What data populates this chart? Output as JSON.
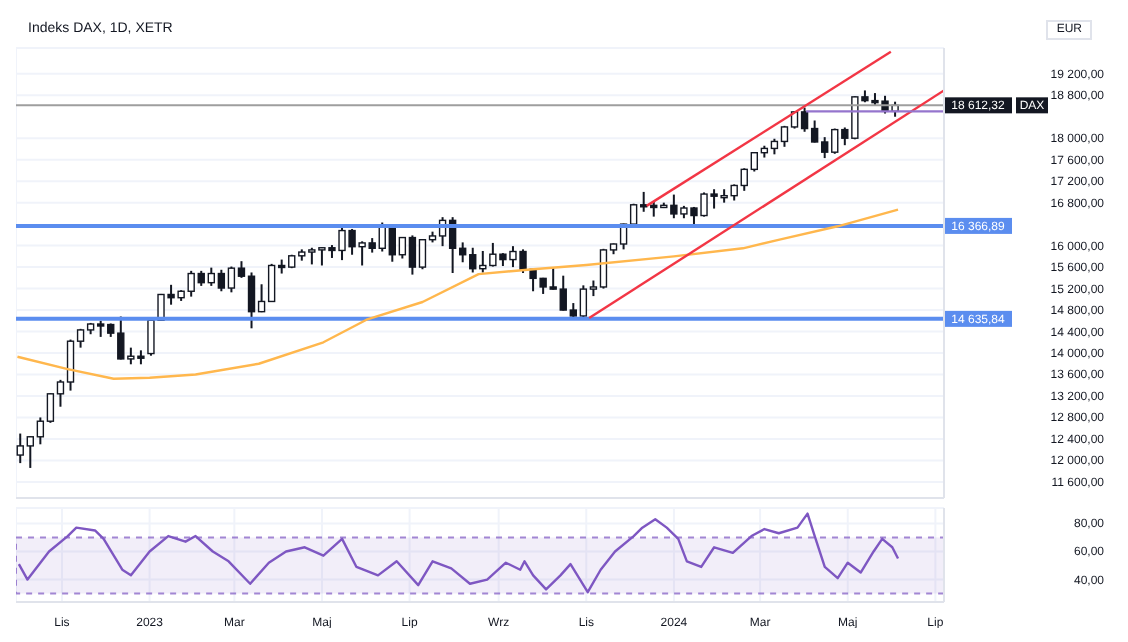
{
  "chart_data": [
    {
      "type": "candlestick",
      "title": "Indeks DAX, 1D, XETR",
      "color": "#131722",
      "grid": true,
      "tick_labels": "y",
      "annotations": [
        "EUR",
        "DAX"
      ],
      "xlim": [
        "2022-09-30",
        "2024-07-07"
      ],
      "xticks": [
        {
          "value": "2022-11-01",
          "label": null
        },
        {
          "value": "2023-01-01",
          "label": null
        },
        {
          "value": "2023-03-01",
          "label": null
        },
        {
          "value": "2023-05-01",
          "label": null
        },
        {
          "value": "2023-07-01",
          "label": null
        },
        {
          "value": "2023-09-01",
          "label": null
        },
        {
          "value": "2023-11-01",
          "label": null
        },
        {
          "value": "2024-01-01",
          "label": null
        },
        {
          "value": "2024-03-01",
          "label": null
        },
        {
          "value": "2024-05-01",
          "label": null
        },
        {
          "value": "2024-07-01",
          "label": null
        }
      ],
      "ylim": [
        11300,
        19680
      ],
      "yticks": [
        {
          "value": 11600,
          "label": "11 600,00"
        },
        {
          "value": 12000,
          "label": "12 000,00"
        },
        {
          "value": 12400,
          "label": "12 400,00"
        },
        {
          "value": 12800,
          "label": "12 800,00"
        },
        {
          "value": 13200,
          "label": "13 200,00"
        },
        {
          "value": 13600,
          "label": "13 600,00"
        },
        {
          "value": 14000,
          "label": "14 000,00"
        },
        {
          "value": 14400,
          "label": "14 400,00"
        },
        {
          "value": 14800,
          "label": "14 800,00"
        },
        {
          "value": 15200,
          "label": "15 200,00"
        },
        {
          "value": 15600,
          "label": "15 600,00"
        },
        {
          "value": 16000,
          "label": "16 000,00"
        },
        {
          "value": 16800,
          "label": "16 800,00"
        },
        {
          "value": 17200,
          "label": "17 200,00"
        },
        {
          "value": 17600,
          "label": "17 600,00"
        },
        {
          "value": 18000,
          "label": "18 000,00"
        },
        {
          "value": 18800,
          "label": "18 800,00"
        },
        {
          "value": 19200,
          "label": "19 200,00"
        }
      ],
      "ref_lines": [
        {
          "axis": "y",
          "value": 18612.32,
          "label": "18 612,32",
          "color": "#9e9e9e"
        },
        {
          "axis": "y",
          "value": 16366.89,
          "label": "16 366,89",
          "color": "#5b8def"
        },
        {
          "axis": "y",
          "value": 14635.84,
          "label": "14 635,84",
          "color": "#5b8def"
        }
      ],
      "x": [
        "2022-10-03",
        "2022-10-10",
        "2022-10-17",
        "2022-10-24",
        "2022-10-31",
        "2022-11-07",
        "2022-11-14",
        "2022-11-21",
        "2022-11-28",
        "2022-12-05",
        "2022-12-12",
        "2022-12-19",
        "2022-12-26",
        "2023-01-02",
        "2023-01-09",
        "2023-01-16",
        "2023-01-23",
        "2023-01-30",
        "2023-02-06",
        "2023-02-13",
        "2023-02-20",
        "2023-02-27",
        "2023-03-06",
        "2023-03-13",
        "2023-03-20",
        "2023-03-27",
        "2023-04-03",
        "2023-04-10",
        "2023-04-17",
        "2023-04-24",
        "2023-05-01",
        "2023-05-08",
        "2023-05-15",
        "2023-05-22",
        "2023-05-29",
        "2023-06-05",
        "2023-06-12",
        "2023-06-19",
        "2023-06-26",
        "2023-07-03",
        "2023-07-10",
        "2023-07-17",
        "2023-07-24",
        "2023-07-31",
        "2023-08-07",
        "2023-08-14",
        "2023-08-21",
        "2023-08-28",
        "2023-09-04",
        "2023-09-11",
        "2023-09-18",
        "2023-09-25",
        "2023-10-02",
        "2023-10-09",
        "2023-10-16",
        "2023-10-23",
        "2023-10-30",
        "2023-11-06",
        "2023-11-13",
        "2023-11-20",
        "2023-11-27",
        "2023-12-04",
        "2023-12-11",
        "2023-12-18",
        "2023-12-25",
        "2024-01-01",
        "2024-01-08",
        "2024-01-15",
        "2024-01-22",
        "2024-01-29",
        "2024-02-05",
        "2024-02-12",
        "2024-02-19",
        "2024-02-26",
        "2024-03-04",
        "2024-03-11",
        "2024-03-18",
        "2024-03-25",
        "2024-04-01",
        "2024-04-08",
        "2024-04-15",
        "2024-04-22",
        "2024-04-29",
        "2024-05-06",
        "2024-05-13",
        "2024-05-20",
        "2024-05-27",
        "2024-06-03"
      ],
      "ohlc": [
        [
          12100,
          12500,
          11950,
          12270
        ],
        [
          12270,
          12450,
          11860,
          12440
        ],
        [
          12440,
          12800,
          12300,
          12730
        ],
        [
          12730,
          13250,
          12700,
          13240
        ],
        [
          13240,
          13500,
          13000,
          13460
        ],
        [
          13460,
          14250,
          13300,
          14220
        ],
        [
          14220,
          14450,
          14100,
          14430
        ],
        [
          14430,
          14560,
          14350,
          14540
        ],
        [
          14540,
          14600,
          14300,
          14530
        ],
        [
          14530,
          14550,
          14300,
          14370
        ],
        [
          14370,
          14680,
          13880,
          13890
        ],
        [
          13890,
          14100,
          13790,
          13940
        ],
        [
          13940,
          14050,
          13790,
          13920
        ],
        [
          13990,
          14650,
          13950,
          14610
        ],
        [
          14610,
          15100,
          14600,
          15090
        ],
        [
          15090,
          15270,
          14900,
          15030
        ],
        [
          15030,
          15170,
          14970,
          15150
        ],
        [
          15150,
          15530,
          15050,
          15480
        ],
        [
          15480,
          15530,
          15250,
          15310
        ],
        [
          15310,
          15590,
          15250,
          15480
        ],
        [
          15480,
          15550,
          15150,
          15210
        ],
        [
          15210,
          15610,
          15130,
          15580
        ],
        [
          15580,
          15710,
          15400,
          15430
        ],
        [
          15430,
          15500,
          14460,
          14770
        ],
        [
          14770,
          15280,
          14760,
          14960
        ],
        [
          14960,
          15660,
          14950,
          15630
        ],
        [
          15630,
          15740,
          15480,
          15600
        ],
        [
          15600,
          15830,
          15580,
          15810
        ],
        [
          15810,
          15930,
          15720,
          15880
        ],
        [
          15880,
          15960,
          15650,
          15920
        ],
        [
          15920,
          15970,
          15630,
          15960
        ],
        [
          15960,
          16010,
          15770,
          15910
        ],
        [
          15910,
          16330,
          15730,
          16280
        ],
        [
          16280,
          16310,
          15830,
          15980
        ],
        [
          15980,
          16080,
          15630,
          16050
        ],
        [
          16050,
          16140,
          15870,
          15950
        ],
        [
          15950,
          16430,
          15890,
          16360
        ],
        [
          16360,
          16370,
          15700,
          15830
        ],
        [
          15830,
          16160,
          15760,
          16150
        ],
        [
          16150,
          16190,
          15460,
          15600
        ],
        [
          15600,
          16120,
          15560,
          16110
        ],
        [
          16110,
          16260,
          16060,
          16180
        ],
        [
          16180,
          16530,
          15990,
          16470
        ],
        [
          16470,
          16530,
          15490,
          15950
        ],
        [
          15950,
          16060,
          15690,
          15830
        ],
        [
          15830,
          15960,
          15500,
          15570
        ],
        [
          15570,
          15900,
          15500,
          15630
        ],
        [
          15630,
          16050,
          15610,
          15840
        ],
        [
          15840,
          15860,
          15620,
          15740
        ],
        [
          15740,
          15990,
          15600,
          15890
        ],
        [
          15890,
          15930,
          15490,
          15560
        ],
        [
          15560,
          15570,
          15150,
          15390
        ],
        [
          15390,
          15400,
          15100,
          15230
        ],
        [
          15230,
          15600,
          15180,
          15190
        ],
        [
          15190,
          15440,
          14790,
          14800
        ],
        [
          14800,
          14930,
          14630,
          14690
        ],
        [
          14690,
          15260,
          14650,
          15190
        ],
        [
          15190,
          15350,
          15060,
          15230
        ],
        [
          15230,
          15940,
          15200,
          15920
        ],
        [
          15920,
          16040,
          15840,
          16030
        ],
        [
          16030,
          16410,
          15930,
          16400
        ],
        [
          16400,
          16780,
          16350,
          16760
        ],
        [
          16760,
          17000,
          16630,
          16750
        ],
        [
          16750,
          16830,
          16540,
          16710
        ],
        [
          16710,
          16800,
          16700,
          16750
        ],
        [
          16750,
          16950,
          16510,
          16590
        ],
        [
          16590,
          16740,
          16510,
          16700
        ],
        [
          16700,
          16720,
          16350,
          16560
        ],
        [
          16560,
          16990,
          16540,
          16960
        ],
        [
          16960,
          17050,
          16690,
          16920
        ],
        [
          16920,
          17050,
          16800,
          16930
        ],
        [
          16930,
          17140,
          16840,
          17120
        ],
        [
          17120,
          17440,
          17020,
          17420
        ],
        [
          17420,
          17730,
          17380,
          17730
        ],
        [
          17730,
          17860,
          17640,
          17810
        ],
        [
          17810,
          17990,
          17700,
          17940
        ],
        [
          17940,
          18230,
          17840,
          18210
        ],
        [
          18210,
          18500,
          18180,
          18490
        ],
        [
          18490,
          18570,
          18120,
          18180
        ],
        [
          18180,
          18330,
          17920,
          17930
        ],
        [
          17930,
          18020,
          17630,
          17740
        ],
        [
          17740,
          18180,
          17710,
          18160
        ],
        [
          18160,
          18200,
          17870,
          18000
        ],
        [
          18000,
          18780,
          17980,
          18770
        ],
        [
          18770,
          18890,
          18670,
          18700
        ],
        [
          18700,
          18840,
          18620,
          18690
        ],
        [
          18690,
          18790,
          18460,
          18500
        ],
        [
          18500,
          18680,
          18400,
          18612.32
        ]
      ],
      "series": [
        {
          "type": "line",
          "color": "#ffb74d",
          "x": [
            "2022-10-01",
            "2022-11-05",
            "2022-12-07",
            "2023-01-01",
            "2023-02-02",
            "2023-03-18",
            "2023-05-02",
            "2023-06-01",
            "2023-07-10",
            "2023-08-18",
            "2023-09-25",
            "2023-11-01",
            "2024-01-01",
            "2024-02-18",
            "2024-03-16",
            "2024-04-24",
            "2024-06-05"
          ],
          "values": [
            13930,
            13700,
            13520,
            13540,
            13600,
            13800,
            14200,
            14620,
            14950,
            15470,
            15560,
            15640,
            15800,
            15950,
            16120,
            16360,
            16670
          ]
        },
        {
          "type": "line",
          "color": "#f23645",
          "x": [
            "2023-12-13",
            "2024-05-31"
          ],
          "values": [
            16740,
            19610
          ]
        },
        {
          "type": "line",
          "color": "#f23645",
          "x": [
            "2023-11-03",
            "2024-07-07"
          ],
          "values": [
            14650,
            18890
          ]
        },
        {
          "type": "line",
          "color": "#9575cd",
          "x": [
            "2024-04-02",
            "2024-07-07"
          ],
          "values": [
            18500,
            18500
          ]
        }
      ]
    },
    {
      "type": "line",
      "grid": true,
      "xlim": [
        "2022-09-30",
        "2024-07-07"
      ],
      "xticks": [
        {
          "value": "2022-11-01",
          "label": "Lis"
        },
        {
          "value": "2023-01-01",
          "label": "2023"
        },
        {
          "value": "2023-03-01",
          "label": "Mar"
        },
        {
          "value": "2023-05-01",
          "label": "Maj"
        },
        {
          "value": "2023-07-01",
          "label": "Lip"
        },
        {
          "value": "2023-09-01",
          "label": "Wrz"
        },
        {
          "value": "2023-11-01",
          "label": "Lis"
        },
        {
          "value": "2024-01-01",
          "label": "2024"
        },
        {
          "value": "2024-03-01",
          "label": "Mar"
        },
        {
          "value": "2024-05-01",
          "label": "Maj"
        },
        {
          "value": "2024-07-01",
          "label": "Lip"
        }
      ],
      "ylim": [
        24,
        91
      ],
      "yticks": [
        {
          "value": 40,
          "label": "40,00"
        },
        {
          "value": 60,
          "label": "60,00"
        },
        {
          "value": 80,
          "label": "80,00"
        }
      ],
      "bands": [
        {
          "axis": "y",
          "from": 30,
          "to": 70,
          "color": "#7e57c2"
        }
      ],
      "x": [
        "2022-10-02",
        "2022-10-08",
        "2022-10-23",
        "2022-11-05",
        "2022-11-11",
        "2022-11-24",
        "2022-11-30",
        "2022-12-13",
        "2022-12-19",
        "2023-01-01",
        "2023-01-14",
        "2023-01-26",
        "2023-02-02",
        "2023-02-14",
        "2023-02-25",
        "2023-03-12",
        "2023-03-25",
        "2023-04-06",
        "2023-04-19",
        "2023-05-02",
        "2023-05-15",
        "2023-05-25",
        "2023-06-09",
        "2023-06-22",
        "2023-07-07",
        "2023-07-17",
        "2023-07-30",
        "2023-08-12",
        "2023-08-24",
        "2023-09-06",
        "2023-09-16",
        "2023-09-19",
        "2023-09-25",
        "2023-10-04",
        "2023-10-14",
        "2023-10-21",
        "2023-11-02",
        "2023-11-11",
        "2023-11-21",
        "2023-12-04",
        "2023-12-10",
        "2023-12-19",
        "2023-12-27",
        "2024-01-04",
        "2024-01-10",
        "2024-01-20",
        "2024-01-29",
        "2024-02-11",
        "2024-02-24",
        "2024-03-04",
        "2024-03-14",
        "2024-03-27",
        "2024-04-03",
        "2024-04-08",
        "2024-04-15",
        "2024-04-24",
        "2024-05-01",
        "2024-05-10",
        "2024-05-19",
        "2024-05-25",
        "2024-06-01",
        "2024-06-05"
      ],
      "series": [
        {
          "color": "#7e57c2",
          "values": [
            51,
            40,
            60,
            71,
            77,
            75,
            69,
            47,
            43,
            60,
            71,
            67,
            71,
            60,
            53,
            37,
            52,
            60,
            63,
            57,
            69,
            49,
            43,
            53,
            36,
            53,
            48,
            37,
            40,
            52,
            47,
            53,
            43,
            33,
            43,
            51,
            31,
            47,
            60,
            71,
            77,
            83,
            77,
            69,
            53,
            49,
            63,
            59,
            71,
            76,
            73,
            77,
            87,
            71,
            49,
            41,
            52,
            45,
            60,
            69,
            63,
            55
          ]
        }
      ]
    }
  ]
}
